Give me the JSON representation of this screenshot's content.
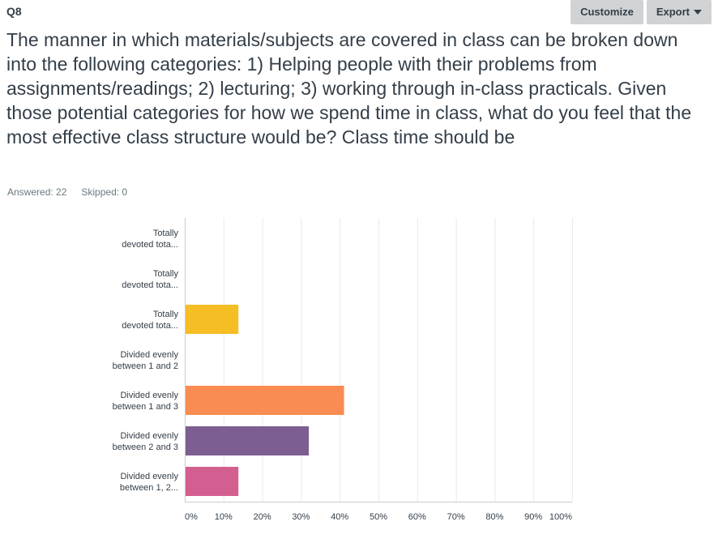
{
  "header": {
    "question_number": "Q8",
    "customize_label": "Customize",
    "export_label": "Export"
  },
  "question": {
    "text": "The manner in which materials/subjects are covered in class can be broken down into the following categories: 1) Helping people with their problems from assignments/readings; 2) lecturing; 3) working through in-class practicals. Given those potential categories for how we spend time in class, what do you feel that the most effective class structure would be? Class time should be"
  },
  "stats": {
    "answered": "Answered: 22",
    "skipped": "Skipped: 0"
  },
  "chart_data": {
    "type": "bar",
    "orientation": "horizontal",
    "categories": [
      [
        "Totally",
        "devoted tota..."
      ],
      [
        "Totally",
        "devoted tota..."
      ],
      [
        "Totally",
        "devoted tota..."
      ],
      [
        "Divided evenly",
        "between 1 and 2"
      ],
      [
        "Divided evenly",
        "between 1 and 3"
      ],
      [
        "Divided evenly",
        "between 2 and 3"
      ],
      [
        "Divided evenly",
        "between 1, 2..."
      ]
    ],
    "values": [
      0,
      0,
      13.64,
      0,
      40.91,
      31.82,
      13.64
    ],
    "colors": [
      "#00bf6f",
      "#507cb6",
      "#f5be24",
      "#6bc8cd",
      "#f98c53",
      "#7d5e90",
      "#d25f90"
    ],
    "xticks": [
      "0%",
      "10%",
      "20%",
      "30%",
      "40%",
      "50%",
      "60%",
      "70%",
      "80%",
      "90%",
      "100%"
    ],
    "xlim": [
      0,
      100
    ],
    "grid": true
  }
}
